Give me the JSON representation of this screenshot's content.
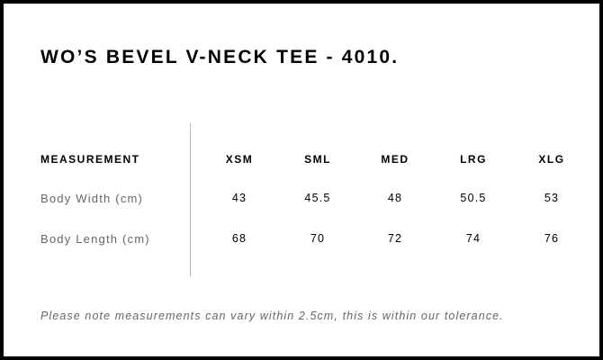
{
  "title": "WO’S BEVEL V-NECK TEE - 4010.",
  "table": {
    "header_label": "MEASUREMENT",
    "sizes": [
      "XSM",
      "SML",
      "MED",
      "LRG",
      "XLG"
    ],
    "rows": [
      {
        "label": "Body Width (cm)",
        "values": [
          "43",
          "45.5",
          "48",
          "50.5",
          "53"
        ]
      },
      {
        "label": "Body Length (cm)",
        "values": [
          "68",
          "70",
          "72",
          "74",
          "76"
        ]
      }
    ]
  },
  "note": "Please note measurements can vary within 2.5cm, this is within our tolerance."
}
